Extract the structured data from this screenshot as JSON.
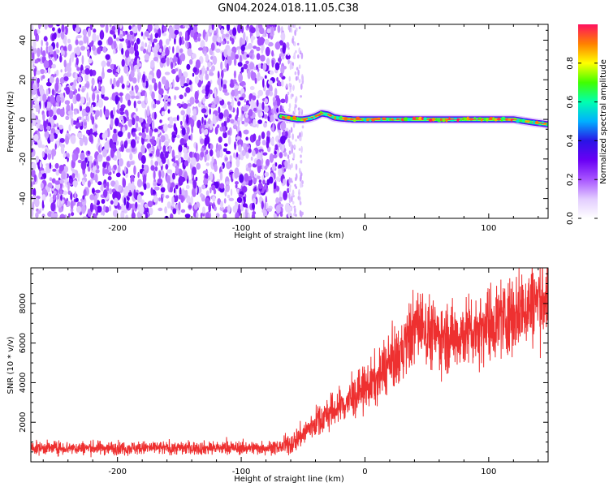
{
  "title": "GN04.2024.018.11.05.C38",
  "chart_data": [
    {
      "type": "heatmap",
      "xlabel": "Height of straight line (km)",
      "ylabel": "Frequency (Hz)",
      "xlim": [
        -270,
        148
      ],
      "ylim": [
        -50,
        48
      ],
      "xticks": [
        -200,
        -100,
        0,
        100
      ],
      "yticks": [
        -40,
        -20,
        0,
        20,
        40
      ],
      "noise_region_x": [
        -270,
        -62
      ],
      "carrier": {
        "x": [
          -68,
          -60,
          -55,
          -50,
          -45,
          -40,
          -35,
          -30,
          -25,
          -20,
          -10,
          0,
          20,
          40,
          60,
          80,
          100,
          120,
          135,
          148
        ],
        "frequency": [
          1.5,
          0.5,
          0,
          0,
          0.5,
          1.5,
          3,
          2.5,
          1,
          0.5,
          0,
          0,
          0,
          0,
          0,
          0,
          0,
          0,
          -1.5,
          -2.5
        ]
      },
      "colorbar": {
        "label": "Normalized spectral amplitude",
        "range": [
          0,
          1
        ],
        "ticks": [
          0.0,
          0.2,
          0.4,
          0.6,
          0.8
        ],
        "colormap": [
          "#ffffff",
          "#e2ccff",
          "#a855ff",
          "#6a00f5",
          "#2a14e6",
          "#00b0ff",
          "#00ffb0",
          "#40ff00",
          "#ffff00",
          "#ff8000",
          "#ff1060"
        ]
      }
    },
    {
      "type": "line",
      "xlabel": "Height of straight line (km)",
      "ylabel": "SNR (10 * v/v)",
      "xlim": [
        -270,
        148
      ],
      "ylim": [
        0,
        9800
      ],
      "xticks": [
        -200,
        -100,
        0,
        100
      ],
      "yticks": [
        2000,
        4000,
        6000,
        8000
      ],
      "color": "#ee3030",
      "series": [
        {
          "x": [
            -270,
            -200,
            -100,
            -70,
            -60,
            -50,
            -40,
            -30,
            -20,
            -10,
            0,
            10,
            20,
            30,
            35,
            40,
            45,
            50,
            60,
            70,
            80,
            90,
            100,
            110,
            120,
            130,
            140,
            148
          ],
          "y": [
            700,
            700,
            700,
            720,
            900,
            1400,
            2000,
            2400,
            2800,
            3200,
            3700,
            4200,
            4900,
            5600,
            6200,
            6800,
            7000,
            6600,
            6400,
            6300,
            6500,
            6700,
            7000,
            7200,
            7500,
            7800,
            8200,
            8300
          ]
        }
      ]
    }
  ]
}
